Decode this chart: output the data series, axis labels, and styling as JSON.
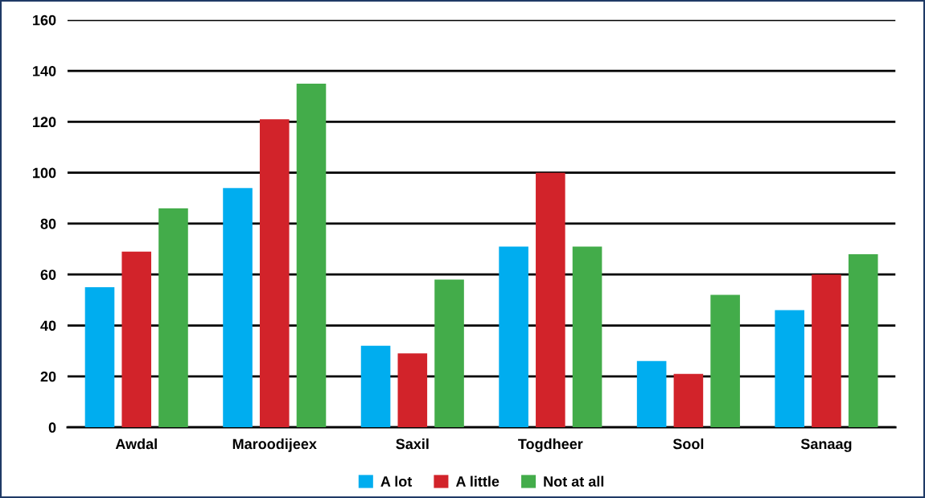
{
  "chart_data": {
    "type": "bar",
    "categories": [
      "Awdal",
      "Maroodijeex",
      "Saxil",
      "Togdheer",
      "Sool",
      "Sanaag"
    ],
    "series": [
      {
        "name": "A lot",
        "color": "#00adef",
        "values": [
          55,
          94,
          32,
          71,
          26,
          46
        ]
      },
      {
        "name": "A little",
        "color": "#d2232a",
        "values": [
          69,
          121,
          29,
          100,
          21,
          60
        ]
      },
      {
        "name": "Not at all",
        "color": "#43ac4a",
        "values": [
          86,
          135,
          58,
          71,
          52,
          68
        ]
      }
    ],
    "ylim": [
      0,
      160
    ],
    "yticks": [
      0,
      20,
      40,
      60,
      80,
      100,
      120,
      140,
      160
    ],
    "grid": "y",
    "legend": "bottom"
  }
}
